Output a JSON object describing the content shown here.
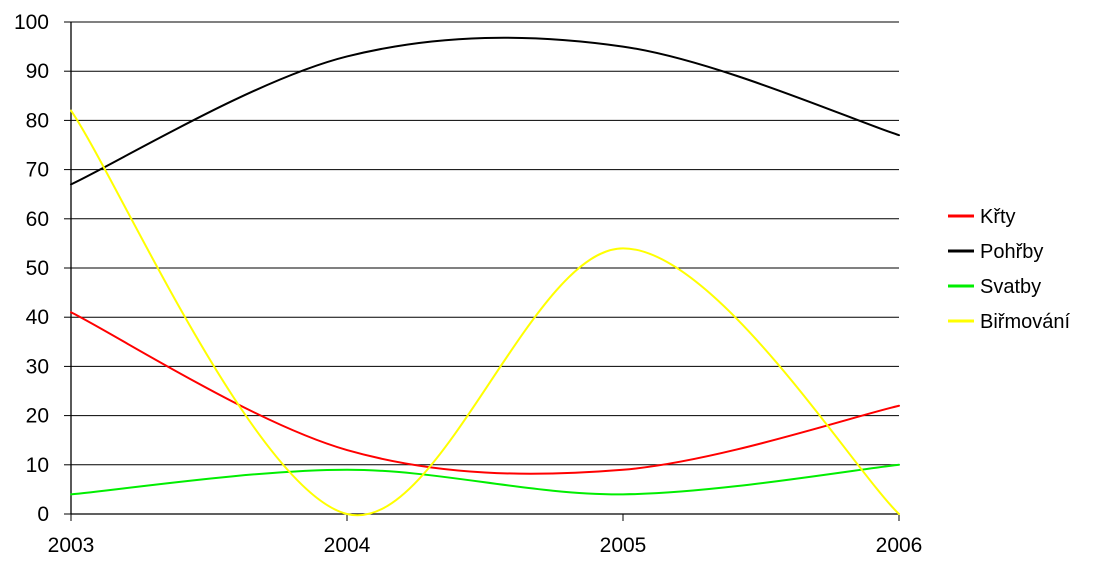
{
  "chart_data": {
    "type": "line",
    "title": "",
    "xlabel": "",
    "ylabel": "",
    "x": [
      2003,
      2004,
      2005,
      2006
    ],
    "xlim": [
      2003,
      2006
    ],
    "ylim": [
      0,
      100
    ],
    "yticks": [
      0,
      10,
      20,
      30,
      40,
      50,
      60,
      70,
      80,
      90,
      100
    ],
    "grid": "horizontal",
    "legend_position": "right",
    "smooth": true,
    "series": [
      {
        "name": "Křty",
        "values": [
          41,
          13,
          9,
          22
        ],
        "color": "#ff0000"
      },
      {
        "name": "Pohřby",
        "values": [
          67,
          93,
          95,
          77
        ],
        "color": "#000000"
      },
      {
        "name": "Svatby",
        "values": [
          4,
          9,
          4,
          10
        ],
        "color": "#00ee00"
      },
      {
        "name": "Biřmování",
        "values": [
          82,
          0,
          54,
          0
        ],
        "color": "#ffff00"
      }
    ]
  }
}
